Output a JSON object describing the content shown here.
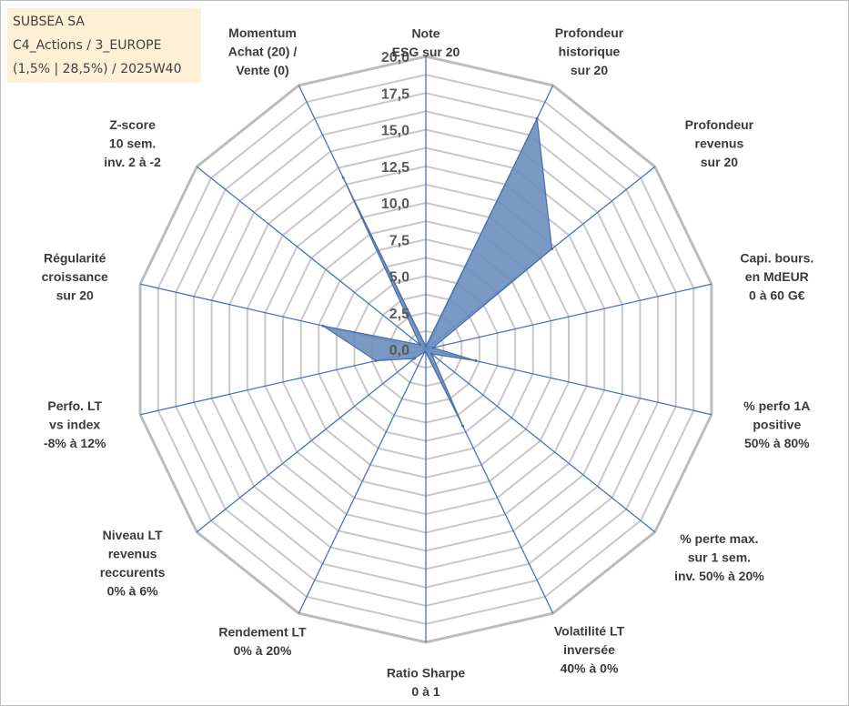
{
  "info": {
    "line1": "SUBSEA SA",
    "line2": "C4_Actions / 3_EUROPE",
    "line3": "(1,5% | 28,5%) / 2025W40"
  },
  "chart_data": {
    "type": "radar",
    "title": "",
    "rlim": [
      0,
      20
    ],
    "ticks": [
      "0,0",
      "2,5",
      "5,0",
      "7,5",
      "10,0",
      "12,5",
      "15,0",
      "17,5",
      "20,0"
    ],
    "grid": true,
    "colors": {
      "fill": "#6b8fbf",
      "stroke": "#4a6fa5",
      "spoke": "#4472c4",
      "ring": "#c8c8c8",
      "outer_ring": "#bcbcbc"
    },
    "axes": [
      [
        "Note",
        "ESG sur 20"
      ],
      [
        "Profondeur",
        "historique",
        "sur 20"
      ],
      [
        "Profondeur",
        "revenus",
        "sur 20"
      ],
      [
        "Capi. bours.",
        "en MdEUR",
        "0 à 60 G€"
      ],
      [
        "% perfo 1A",
        "positive",
        "50% à 80%"
      ],
      [
        "% perte max.",
        "sur 1 sem.",
        "inv. 50% à 20%"
      ],
      [
        "Volatilité LT",
        "inversée",
        "40% à 0%"
      ],
      [
        "Ratio Sharpe",
        "0 à 1"
      ],
      [
        "Rendement LT",
        "0% à 20%"
      ],
      [
        "Niveau LT",
        "revenus",
        "reccurents",
        "0% à 6%"
      ],
      [
        "Perfo. LT",
        "vs index",
        "-8% à 12%"
      ],
      [
        "Régularité",
        "croissance",
        "sur 20"
      ],
      [
        "Z-score",
        "10 sem.",
        "inv. 2 à -2"
      ],
      [
        "Momentum",
        "Achat (20) /",
        "Vente (0)"
      ]
    ],
    "series": [
      {
        "values": [
          0.2,
          17.5,
          11.0,
          0.5,
          3.5,
          0.5,
          5.8,
          0.2,
          0.2,
          1.0,
          3.5,
          7.2,
          0.5,
          13.0
        ]
      }
    ]
  }
}
